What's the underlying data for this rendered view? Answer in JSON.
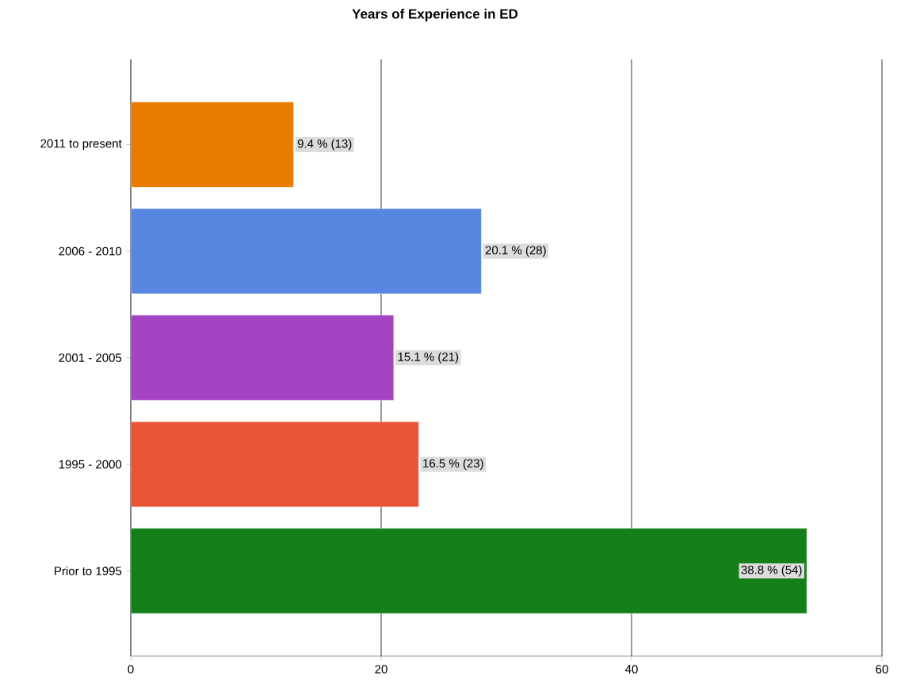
{
  "chart_data": {
    "type": "bar",
    "orientation": "horizontal",
    "title": "Years of Experience in ED",
    "categories": [
      "2011 to present",
      "2006 - 2010",
      "2001 - 2005",
      "1995 - 2000",
      "Prior to 1995"
    ],
    "values": [
      13,
      28,
      21,
      23,
      54
    ],
    "colors": [
      "#e97c00",
      "#5787e0",
      "#a444c2",
      "#ea5536",
      "#15801a"
    ],
    "value_labels": [
      "9.4 % (13)",
      "20.1 % (28)",
      "15.1 % (21)",
      "16.5 % (23)",
      "38.8 % (54)"
    ],
    "xlim": [
      0,
      60
    ],
    "xticks": [
      0,
      20,
      40,
      60
    ],
    "grid": "x"
  }
}
